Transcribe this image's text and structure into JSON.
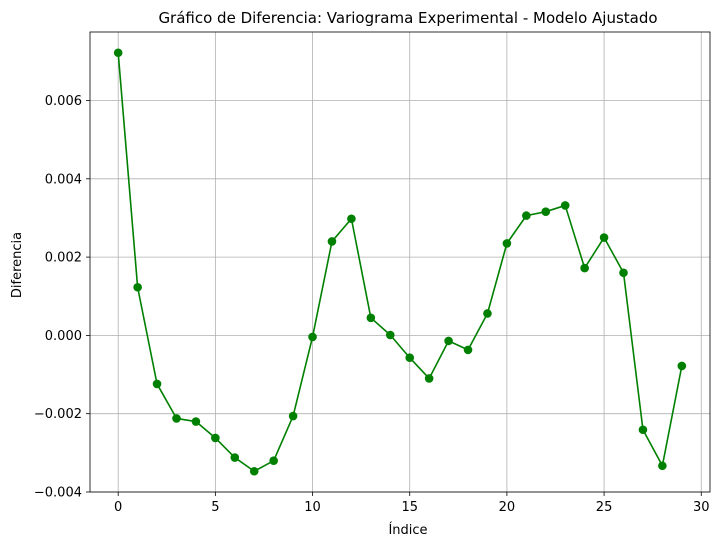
{
  "chart_data": {
    "type": "line",
    "title": "Gráfico de Diferencia: Variograma Experimental - Modelo Ajustado",
    "xlabel": "Índice",
    "ylabel": "Diferencia",
    "xlim": [
      -1.45,
      30.45
    ],
    "ylim": [
      -0.004,
      0.00775
    ],
    "xticks": [
      0,
      5,
      10,
      15,
      20,
      25,
      30
    ],
    "xtick_labels": [
      "0",
      "5",
      "10",
      "15",
      "20",
      "25",
      "30"
    ],
    "yticks": [
      -0.004,
      -0.002,
      0.0,
      0.002,
      0.004,
      0.006
    ],
    "ytick_labels": [
      "−0.004",
      "−0.002",
      "0.000",
      "0.002",
      "0.004",
      "0.006"
    ],
    "grid": true,
    "color": "#008000",
    "marker": "circle",
    "series": [
      {
        "x": [
          0,
          1,
          2,
          3,
          4,
          5,
          6,
          7,
          8,
          9,
          10,
          11,
          12,
          13,
          14,
          15,
          16,
          17,
          18,
          19,
          20,
          21,
          22,
          23,
          24,
          25,
          26,
          27,
          28,
          29
        ],
        "values": [
          0.00722,
          0.00123,
          -0.00124,
          -0.00212,
          -0.0022,
          -0.00262,
          -0.00312,
          -0.00347,
          -0.0032,
          -0.00206,
          -4e-05,
          0.0024,
          0.00298,
          0.00045,
          1e-05,
          -0.00057,
          -0.0011,
          -0.00014,
          -0.00037,
          0.00056,
          0.00235,
          0.00306,
          0.00316,
          0.00332,
          0.00172,
          0.0025,
          0.0016,
          -0.00241,
          -0.00333,
          -0.00078
        ]
      }
    ]
  }
}
